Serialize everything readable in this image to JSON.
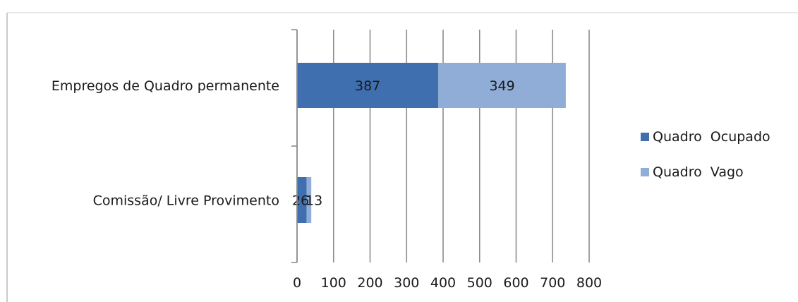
{
  "chart_data": {
    "type": "bar",
    "orientation": "horizontal",
    "stacked": true,
    "categories": [
      "Empregos de Quadro permanente",
      "Comissão/ Livre Provimento"
    ],
    "series": [
      {
        "name": "Quadro  Ocupado",
        "values": [
          387,
          26
        ],
        "color": "#3f6fae"
      },
      {
        "name": "Quadro  Vago",
        "values": [
          349,
          13
        ],
        "color": "#8fadd6"
      }
    ],
    "xlim": [
      0,
      800
    ],
    "xticks": [
      0,
      100,
      200,
      300,
      400,
      500,
      600,
      700,
      800
    ],
    "grid": true,
    "legend_position": "right",
    "data_labels": true
  }
}
